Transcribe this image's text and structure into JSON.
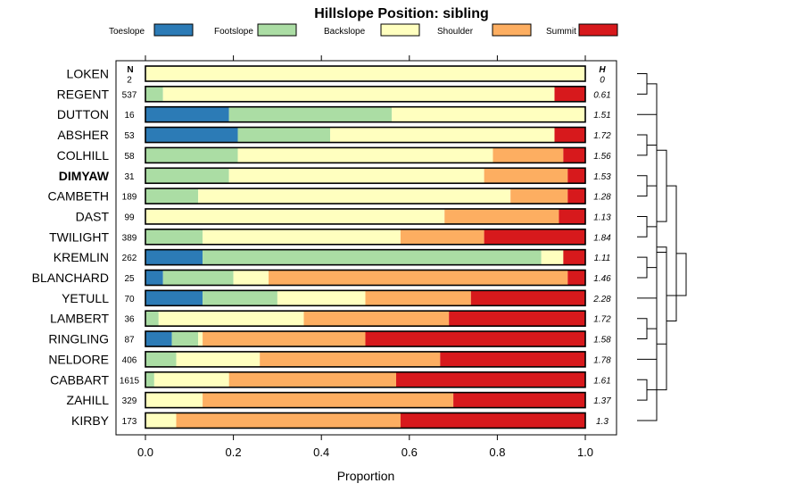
{
  "chart_data": {
    "type": "bar",
    "stacked": true,
    "orientation": "horizontal",
    "title": "Hillslope Position: sibling",
    "xlabel": "Proportion",
    "xlim": [
      0,
      1
    ],
    "x_ticks": [
      "0.0",
      "0.2",
      "0.4",
      "0.6",
      "0.8",
      "1.0"
    ],
    "n_header": "N",
    "h_header": "H",
    "highlight_category": "DIMYAW",
    "legend": [
      {
        "name": "Toeslope",
        "color": "#2C7BB6"
      },
      {
        "name": "Footslope",
        "color": "#ABDDA4"
      },
      {
        "name": "Backslope",
        "color": "#FFFFBF"
      },
      {
        "name": "Shoulder",
        "color": "#FDAE61"
      },
      {
        "name": "Summit",
        "color": "#D7191C"
      }
    ],
    "rows": [
      {
        "name": "LOKEN",
        "n": "2",
        "h": "0",
        "values": [
          0,
          0,
          1.0,
          0,
          0
        ]
      },
      {
        "name": "REGENT",
        "n": "537",
        "h": "0.61",
        "values": [
          0,
          0.04,
          0.89,
          0,
          0.07
        ]
      },
      {
        "name": "DUTTON",
        "n": "16",
        "h": "1.51",
        "values": [
          0.19,
          0.37,
          0.44,
          0,
          0
        ]
      },
      {
        "name": "ABSHER",
        "n": "53",
        "h": "1.72",
        "values": [
          0.21,
          0.21,
          0.51,
          0,
          0.07
        ]
      },
      {
        "name": "COLHILL",
        "n": "58",
        "h": "1.56",
        "values": [
          0,
          0.21,
          0.58,
          0.16,
          0.05
        ]
      },
      {
        "name": "DIMYAW",
        "n": "31",
        "h": "1.53",
        "values": [
          0,
          0.19,
          0.58,
          0.19,
          0.04
        ]
      },
      {
        "name": "CAMBETH",
        "n": "189",
        "h": "1.28",
        "values": [
          0,
          0.12,
          0.71,
          0.13,
          0.04
        ]
      },
      {
        "name": "DAST",
        "n": "99",
        "h": "1.13",
        "values": [
          0,
          0,
          0.68,
          0.26,
          0.06
        ]
      },
      {
        "name": "TWILIGHT",
        "n": "389",
        "h": "1.84",
        "values": [
          0,
          0.13,
          0.45,
          0.19,
          0.23
        ]
      },
      {
        "name": "KREMLIN",
        "n": "262",
        "h": "1.11",
        "values": [
          0.13,
          0.77,
          0.05,
          0,
          0.05
        ]
      },
      {
        "name": "BLANCHARD",
        "n": "25",
        "h": "1.46",
        "values": [
          0.04,
          0.16,
          0.08,
          0.68,
          0.04
        ]
      },
      {
        "name": "YETULL",
        "n": "70",
        "h": "2.28",
        "values": [
          0.13,
          0.17,
          0.2,
          0.24,
          0.26
        ]
      },
      {
        "name": "LAMBERT",
        "n": "36",
        "h": "1.72",
        "values": [
          0,
          0.03,
          0.33,
          0.33,
          0.31
        ]
      },
      {
        "name": "RINGLING",
        "n": "87",
        "h": "1.58",
        "values": [
          0.06,
          0.06,
          0.01,
          0.37,
          0.5
        ]
      },
      {
        "name": "NELDORE",
        "n": "406",
        "h": "1.78",
        "values": [
          0,
          0.07,
          0.19,
          0.41,
          0.33
        ]
      },
      {
        "name": "CABBART",
        "n": "1615",
        "h": "1.61",
        "values": [
          0,
          0.02,
          0.17,
          0.38,
          0.43
        ]
      },
      {
        "name": "ZAHILL",
        "n": "329",
        "h": "1.37",
        "values": [
          0,
          0,
          0.13,
          0.57,
          0.3
        ]
      },
      {
        "name": "KIRBY",
        "n": "173",
        "h": "1.3",
        "values": [
          0,
          0,
          0.07,
          0.51,
          0.42
        ]
      }
    ],
    "dendrogram": [
      [
        0,
        1
      ],
      [
        3,
        4
      ],
      [
        5,
        6
      ],
      [
        7,
        8
      ],
      [
        9,
        10
      ],
      [
        12,
        13
      ],
      [
        15,
        16
      ],
      [
        17,
        18
      ],
      [
        19,
        11
      ],
      [
        2,
        20
      ],
      [
        21,
        22
      ],
      [
        23,
        14
      ],
      [
        24,
        25
      ],
      [
        26,
        27
      ],
      [
        28,
        29
      ],
      [
        30,
        31
      ],
      [
        32,
        33
      ]
    ]
  }
}
